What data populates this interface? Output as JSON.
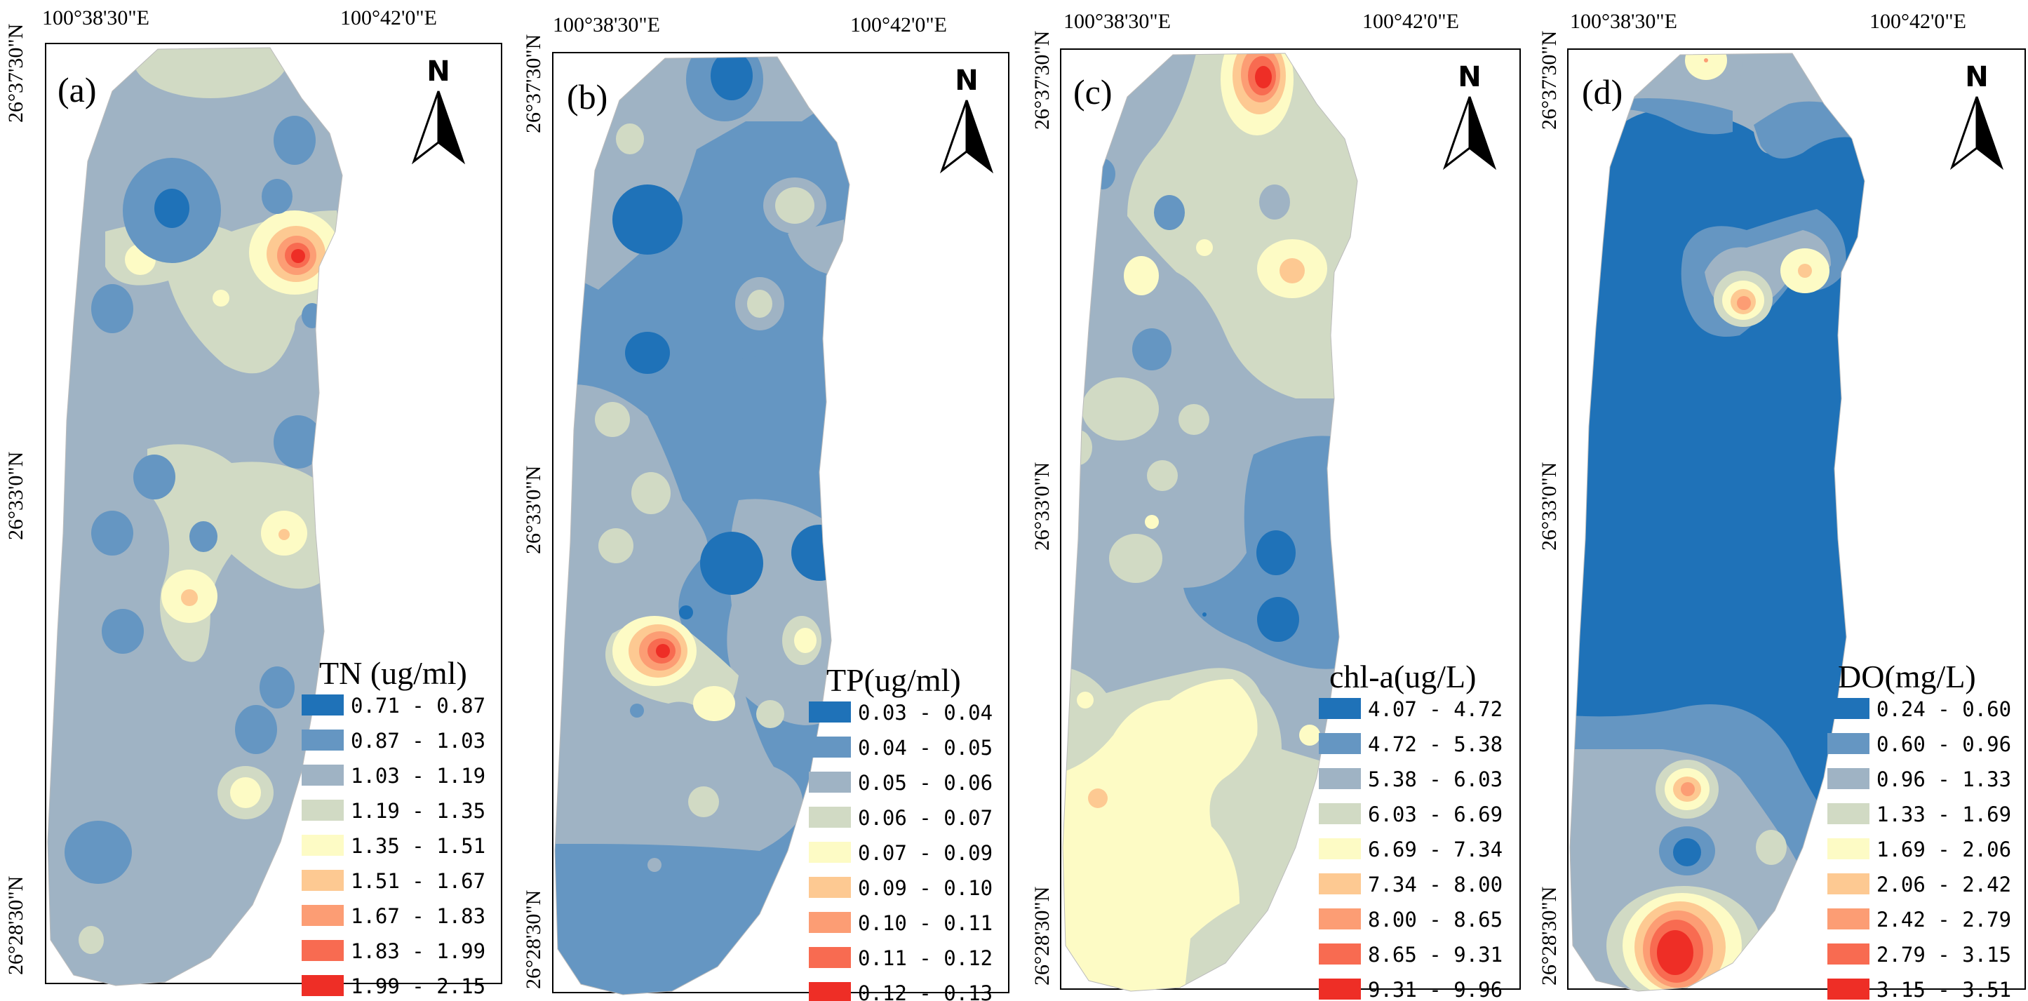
{
  "colors": {
    "c0": "#1f72b8",
    "c1": "#6596c2",
    "c2": "#9fb3c4",
    "c3": "#d1dac4",
    "c4": "#fdfbc5",
    "c5": "#fdc992",
    "c6": "#fc9d74",
    "c7": "#f86b51",
    "c8": "#ee2e26"
  },
  "coords": {
    "lon1": "100°38'30\"E",
    "lon2": "100°42'0\"E",
    "lat1": "26°37'30\"N",
    "lat2": "26°33'0\"N",
    "lat3": "26°28'30\"N"
  },
  "north_arrow": {
    "letter": "N",
    "icon": "north-arrow-icon"
  },
  "panels": [
    {
      "label": "(a)",
      "legend_title": "TN (ug/ml)",
      "classes": [
        "0.71 - 0.87",
        "0.87 - 1.03",
        "1.03 - 1.19",
        "1.19 - 1.35",
        "1.35 - 1.51",
        "1.51 - 1.67",
        "1.67 - 1.83",
        "1.83 - 1.99",
        "1.99 - 2.15"
      ]
    },
    {
      "label": "(b)",
      "legend_title": "TP(ug/ml)",
      "classes": [
        "0.03 - 0.04",
        "0.04 - 0.05",
        "0.05 - 0.06",
        "0.06 - 0.07",
        "0.07 - 0.09",
        "0.09 - 0.10",
        "0.10 - 0.11",
        "0.11 - 0.12",
        "0.12 - 0.13"
      ]
    },
    {
      "label": "(c)",
      "legend_title": "chl-a(ug/L)",
      "classes": [
        "4.07 - 4.72",
        "4.72 - 5.38",
        "5.38 - 6.03",
        "6.03 - 6.69",
        "6.69 - 7.34",
        "7.34 - 8.00",
        "8.00 - 8.65",
        "8.65 - 9.31",
        "9.31 - 9.96"
      ]
    },
    {
      "label": "(d)",
      "legend_title": "DO(mg/L)",
      "classes": [
        "0.24 - 0.60",
        "0.60 - 0.96",
        "0.96 - 1.33",
        "1.33 - 1.69",
        "1.69 - 2.06",
        "2.06 - 2.42",
        "2.42 - 2.79",
        "2.79 - 3.15",
        "3.15 - 3.51"
      ]
    }
  ]
}
